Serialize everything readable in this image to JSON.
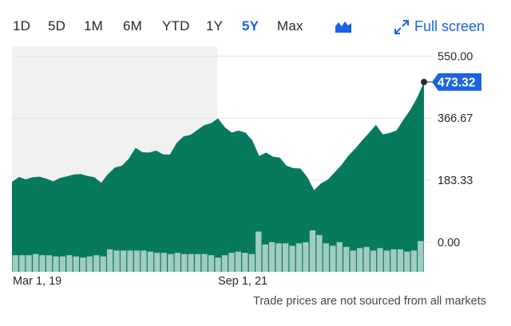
{
  "ranges": [
    {
      "label": "1D",
      "active": false
    },
    {
      "label": "5D",
      "active": false
    },
    {
      "label": "1M",
      "active": false
    },
    {
      "label": "6M",
      "active": false
    },
    {
      "label": "YTD",
      "active": false
    },
    {
      "label": "1Y",
      "active": false
    },
    {
      "label": "5Y",
      "active": true
    },
    {
      "label": "Max",
      "active": false
    }
  ],
  "chart_type_icon": "mountain-chart-icon",
  "fullscreen": {
    "label": "Full screen",
    "icon": "expand-arrows-icon"
  },
  "footnote": "Trade prices are not sourced from all markets",
  "colors": {
    "area": "#077a5d",
    "volume": "#077a5d",
    "volume_light": "#a7d9cc",
    "badge": "#1a63e2",
    "active_tab": "#1a63e2",
    "shade": "#f1f1f1"
  },
  "chart_data": {
    "type": "area",
    "title": "",
    "xlabel": "",
    "ylabel": "",
    "x_tick_labels": [
      "Mar 1, 19",
      "Sep 1, 21"
    ],
    "y_tick_labels": [
      "550.00",
      "366.67",
      "183.33",
      "0.00"
    ],
    "y_ticks": [
      550,
      366.67,
      183.33,
      0
    ],
    "ylim": [
      -87,
      579
    ],
    "grid": true,
    "last_value_label": "473.32",
    "last_value": 473.32,
    "series": [
      {
        "values": [
          178,
          193,
          186,
          192,
          194,
          188,
          180,
          190,
          195,
          200,
          202,
          196,
          192,
          176,
          202,
          221,
          226,
          247,
          279,
          266,
          265,
          271,
          260,
          259,
          294,
          313,
          317,
          332,
          346,
          352,
          366,
          340,
          324,
          330,
          324,
          301,
          255,
          265,
          253,
          250,
          226,
          219,
          218,
          193,
          154,
          174,
          185,
          207,
          229,
          256,
          277,
          301,
          323,
          347,
          319,
          323,
          330,
          362,
          391,
          427,
          473
        ]
      }
    ],
    "volume": {
      "values": [
        14,
        14,
        14,
        15,
        14,
        14,
        13,
        13,
        14,
        13,
        12,
        13,
        14,
        13,
        19,
        18,
        18,
        18,
        18,
        18,
        17,
        16,
        16,
        15,
        16,
        15,
        15,
        15,
        15,
        14,
        12,
        14,
        16,
        17,
        16,
        15,
        34,
        23,
        25,
        24,
        24,
        22,
        24,
        25,
        35,
        31,
        24,
        22,
        25,
        21,
        18,
        20,
        21,
        18,
        20,
        18,
        19,
        19,
        17,
        18,
        26
      ]
    }
  }
}
